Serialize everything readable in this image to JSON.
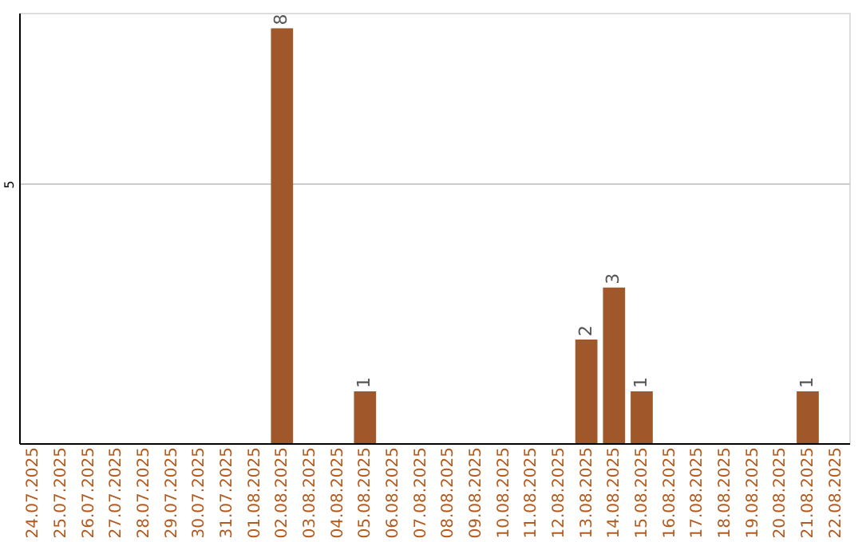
{
  "chart_data": {
    "type": "bar",
    "categories": [
      "24.07.2025",
      "25.07.2025",
      "26.07.2025",
      "27.07.2025",
      "28.07.2025",
      "29.07.2025",
      "30.07.2025",
      "31.07.2025",
      "01.08.2025",
      "02.08.2025",
      "03.08.2025",
      "04.08.2025",
      "05.08.2025",
      "06.08.2025",
      "07.08.2025",
      "08.08.2025",
      "09.08.2025",
      "10.08.2025",
      "11.08.2025",
      "12.08.2025",
      "13.08.2025",
      "14.08.2025",
      "15.08.2025",
      "16.08.2025",
      "17.08.2025",
      "18.08.2025",
      "19.08.2025",
      "20.08.2025",
      "21.08.2025",
      "22.08.2025"
    ],
    "values": [
      0,
      0,
      0,
      0,
      0,
      0,
      0,
      0,
      0,
      8,
      0,
      0,
      1,
      0,
      0,
      0,
      0,
      0,
      0,
      0,
      2,
      3,
      1,
      0,
      0,
      0,
      0,
      0,
      1,
      0
    ],
    "value_labels": [
      null,
      null,
      null,
      null,
      null,
      null,
      null,
      null,
      null,
      "8",
      null,
      null,
      "1",
      null,
      null,
      null,
      null,
      null,
      null,
      null,
      "2",
      "3",
      "1",
      null,
      null,
      null,
      null,
      null,
      "1",
      null
    ],
    "color": "#a0582a",
    "ylim": [
      0,
      8.3
    ],
    "yticks": [
      5
    ],
    "grid": "y"
  }
}
